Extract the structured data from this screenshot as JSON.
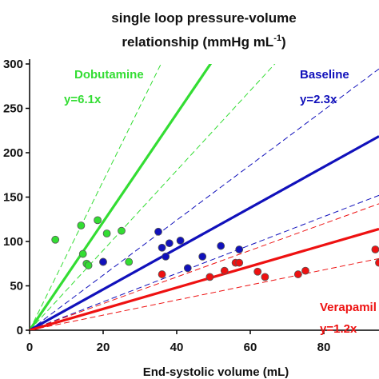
{
  "chart_data": {
    "type": "scatter",
    "title_line1": "single loop pressure-volume",
    "title_line2": "relationship (mmHg mL",
    "title_sup": "-1",
    "title_close": ")",
    "xlabel": "End-systolic volume (mL)",
    "ylabel": "",
    "xlim": [
      0,
      95
    ],
    "ylim": [
      0,
      300
    ],
    "x_ticks": [
      0,
      20,
      40,
      60,
      80
    ],
    "y_ticks": [
      0,
      50,
      100,
      150,
      200,
      250,
      300
    ],
    "x_tick_labels": [
      "0",
      "20",
      "40",
      "60",
      "80"
    ],
    "y_tick_labels": [
      "0",
      "50",
      "100",
      "150",
      "200",
      "250",
      "300"
    ],
    "series": [
      {
        "name": "Dobutamine",
        "equation": "y=6.1x",
        "slope": 6.1,
        "ci_slopes": [
          4.5,
          8.4
        ],
        "color": "#33dd33",
        "points": [
          [
            7,
            102
          ],
          [
            14,
            118
          ],
          [
            14.5,
            86
          ],
          [
            15.5,
            75
          ],
          [
            16,
            73
          ],
          [
            18.5,
            124
          ],
          [
            20,
            77
          ],
          [
            21,
            109
          ],
          [
            25,
            112
          ],
          [
            27,
            77
          ]
        ]
      },
      {
        "name": "Baseline",
        "equation": "y=2.3x",
        "slope": 2.3,
        "ci_slopes": [
          1.6,
          3.1
        ],
        "color": "#1111bb",
        "points": [
          [
            20,
            77
          ],
          [
            35,
            111
          ],
          [
            36,
            93
          ],
          [
            37,
            83
          ],
          [
            38,
            98
          ],
          [
            41,
            101
          ],
          [
            43,
            70
          ],
          [
            47,
            83
          ],
          [
            52,
            95
          ],
          [
            57,
            91
          ]
        ]
      },
      {
        "name": "Verapamil",
        "equation": "y=1.2x",
        "slope": 1.2,
        "ci_slopes": [
          0.85,
          1.5
        ],
        "color": "#ee1111",
        "points": [
          [
            36,
            63
          ],
          [
            49,
            60
          ],
          [
            53,
            67
          ],
          [
            56,
            76
          ],
          [
            57,
            76
          ],
          [
            62,
            66
          ],
          [
            64,
            60
          ],
          [
            73,
            63
          ],
          [
            75,
            67
          ],
          [
            94,
            91
          ],
          [
            95,
            76
          ]
        ]
      }
    ]
  }
}
